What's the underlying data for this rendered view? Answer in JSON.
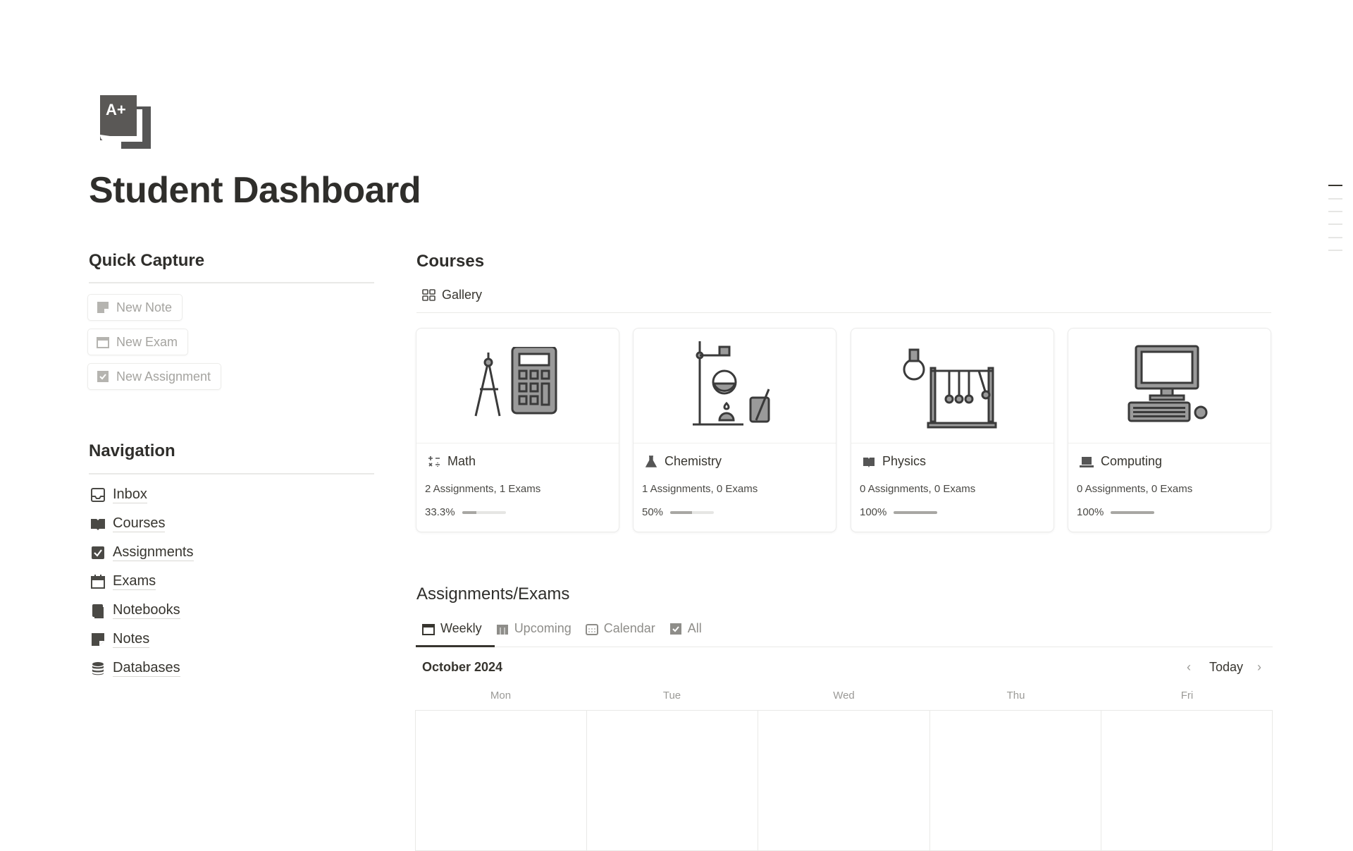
{
  "page": {
    "title": "Student Dashboard",
    "icon": "a-plus-icon",
    "icon_text": "A+"
  },
  "quick_capture": {
    "heading": "Quick Capture",
    "buttons": [
      {
        "label": "New Note",
        "icon": "note-icon"
      },
      {
        "label": "New Exam",
        "icon": "calendar-icon"
      },
      {
        "label": "New Assignment",
        "icon": "checkbox-icon"
      }
    ]
  },
  "navigation": {
    "heading": "Navigation",
    "items": [
      {
        "label": "Inbox",
        "icon": "inbox-icon"
      },
      {
        "label": "Courses",
        "icon": "book-icon"
      },
      {
        "label": "Assignments",
        "icon": "checkbox-icon"
      },
      {
        "label": "Exams",
        "icon": "calendar-icon"
      },
      {
        "label": "Notebooks",
        "icon": "notebook-icon"
      },
      {
        "label": "Notes",
        "icon": "note-icon"
      },
      {
        "label": "Databases",
        "icon": "database-icon"
      }
    ]
  },
  "courses": {
    "heading": "Courses",
    "view_tab": "Gallery",
    "cards": [
      {
        "name": "Math",
        "summary": "2 Assignments, 1 Exams",
        "progress_label": "33.3%",
        "progress": 0.333,
        "icon": "math-operators-icon"
      },
      {
        "name": "Chemistry",
        "summary": "1 Assignments, 0 Exams",
        "progress_label": "50%",
        "progress": 0.5,
        "icon": "flask-icon"
      },
      {
        "name": "Physics",
        "summary": "0 Assignments, 0 Exams",
        "progress_label": "100%",
        "progress": 1.0,
        "icon": "book-icon"
      },
      {
        "name": "Computing",
        "summary": "0 Assignments, 0 Exams",
        "progress_label": "100%",
        "progress": 1.0,
        "icon": "laptop-icon"
      }
    ]
  },
  "assignments": {
    "heading": "Assignments/Exams",
    "tabs": [
      "Weekly",
      "Upcoming",
      "Calendar",
      "All"
    ],
    "active_tab": "Weekly",
    "month": "October 2024",
    "today_label": "Today",
    "days": [
      "Mon",
      "Tue",
      "Wed",
      "Thu",
      "Fri"
    ]
  }
}
